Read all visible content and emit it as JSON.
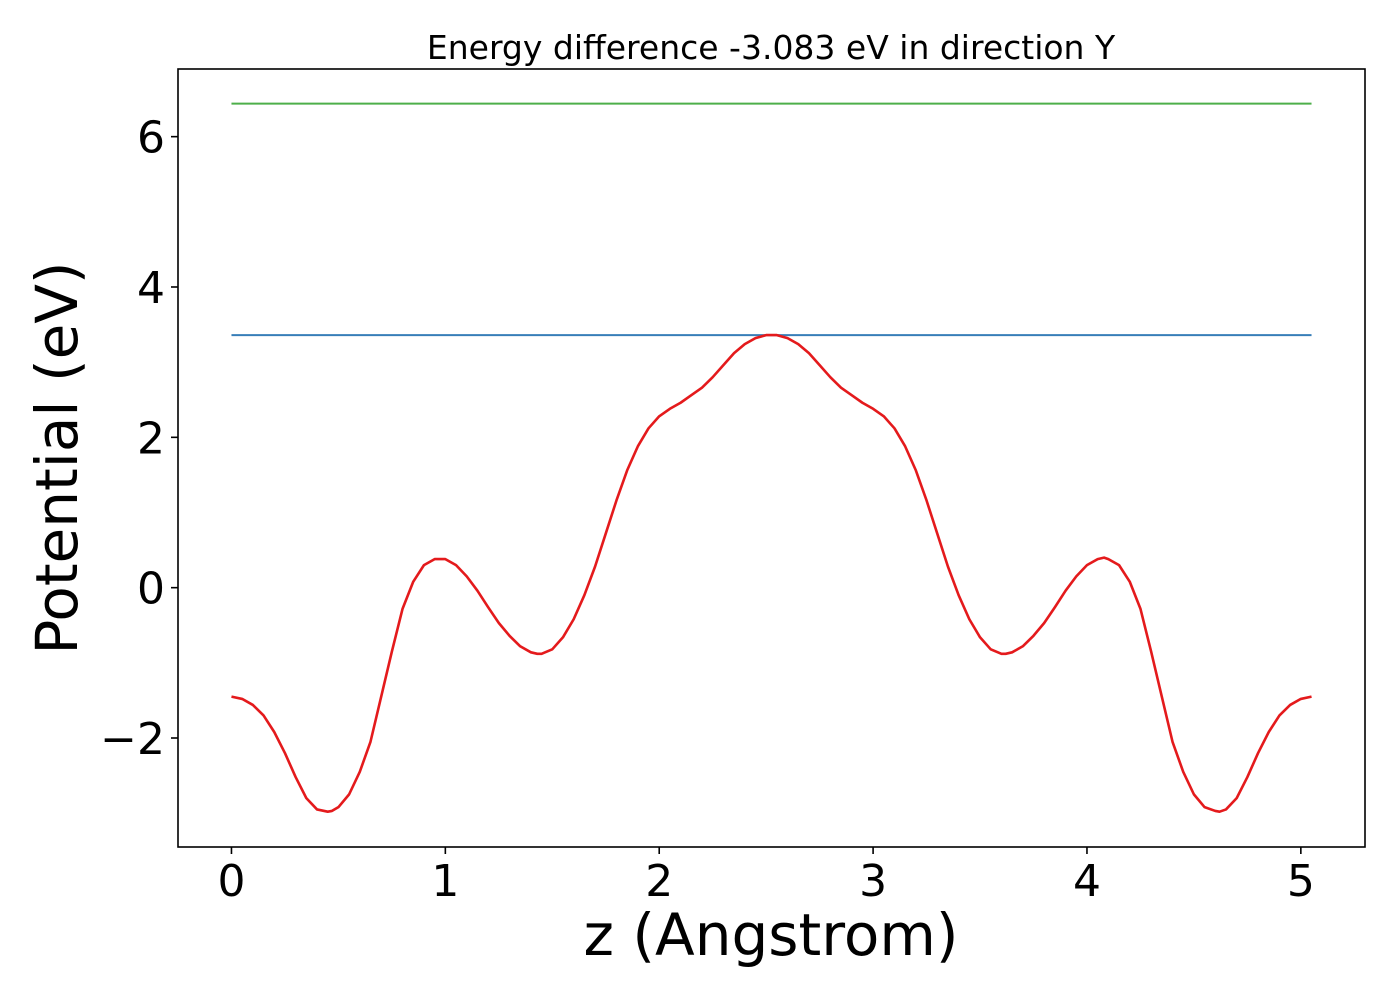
{
  "chart_data": {
    "type": "line",
    "title": "Energy difference -3.083 eV in direction Y",
    "xlabel": "z (Angstrom)",
    "ylabel": "Potential (eV)",
    "xlim": [
      -0.25,
      5.3
    ],
    "ylim": [
      -3.45,
      6.9
    ],
    "x_ticks": [
      0,
      1,
      2,
      3,
      4,
      5
    ],
    "x_tick_labels": [
      "0",
      "1",
      "2",
      "3",
      "4",
      "5"
    ],
    "y_ticks": [
      -2,
      0,
      2,
      4,
      6
    ],
    "y_tick_labels": [
      "−2",
      "0",
      "2",
      "4",
      "6"
    ],
    "grid": false,
    "legend": "none",
    "series": [
      {
        "color": "#4daf4a",
        "x": [
          0,
          5.05
        ],
        "y": [
          6.44,
          6.44
        ]
      },
      {
        "color": "#377eb8",
        "x": [
          0,
          5.05
        ],
        "y": [
          3.36,
          3.36
        ]
      },
      {
        "color": "#e41a1c",
        "x": [
          0,
          0.05,
          0.1,
          0.15,
          0.2,
          0.25,
          0.3,
          0.35,
          0.4,
          0.45,
          0.47,
          0.5,
          0.55,
          0.6,
          0.65,
          0.7,
          0.75,
          0.8,
          0.85,
          0.9,
          0.95,
          1.0,
          1.05,
          1.1,
          1.15,
          1.2,
          1.25,
          1.3,
          1.35,
          1.4,
          1.43,
          1.45,
          1.5,
          1.55,
          1.6,
          1.65,
          1.7,
          1.75,
          1.8,
          1.85,
          1.9,
          1.95,
          2.0,
          2.05,
          2.1,
          2.15,
          2.2,
          2.25,
          2.3,
          2.35,
          2.4,
          2.45,
          2.5,
          2.55,
          2.6,
          2.65,
          2.7,
          2.75,
          2.8,
          2.85,
          2.9,
          2.95,
          3.0,
          3.05,
          3.1,
          3.15,
          3.2,
          3.25,
          3.3,
          3.35,
          3.4,
          3.45,
          3.5,
          3.55,
          3.6,
          3.62,
          3.65,
          3.7,
          3.75,
          3.8,
          3.85,
          3.9,
          3.95,
          4.0,
          4.05,
          4.08,
          4.1,
          4.15,
          4.2,
          4.25,
          4.3,
          4.35,
          4.4,
          4.45,
          4.5,
          4.55,
          4.6,
          4.62,
          4.65,
          4.7,
          4.75,
          4.8,
          4.85,
          4.9,
          4.95,
          5.0,
          5.05
        ],
        "y": [
          -1.45,
          -1.48,
          -1.56,
          -1.7,
          -1.92,
          -2.2,
          -2.52,
          -2.8,
          -2.95,
          -2.98,
          -2.97,
          -2.92,
          -2.75,
          -2.45,
          -2.05,
          -1.45,
          -0.85,
          -0.28,
          0.08,
          0.3,
          0.38,
          0.38,
          0.3,
          0.15,
          -0.04,
          -0.26,
          -0.47,
          -0.64,
          -0.78,
          -0.86,
          -0.88,
          -0.88,
          -0.82,
          -0.66,
          -0.42,
          -0.1,
          0.28,
          0.72,
          1.16,
          1.56,
          1.88,
          2.12,
          2.28,
          2.38,
          2.46,
          2.56,
          2.66,
          2.8,
          2.96,
          3.12,
          3.24,
          3.32,
          3.36,
          3.36,
          3.32,
          3.24,
          3.12,
          2.96,
          2.8,
          2.66,
          2.56,
          2.46,
          2.38,
          2.28,
          2.12,
          1.88,
          1.56,
          1.16,
          0.72,
          0.28,
          -0.1,
          -0.42,
          -0.66,
          -0.82,
          -0.88,
          -0.88,
          -0.86,
          -0.78,
          -0.64,
          -0.47,
          -0.26,
          -0.04,
          0.15,
          0.3,
          0.38,
          0.4,
          0.38,
          0.3,
          0.08,
          -0.28,
          -0.85,
          -1.45,
          -2.05,
          -2.45,
          -2.75,
          -2.92,
          -2.97,
          -2.98,
          -2.95,
          -2.8,
          -2.52,
          -2.2,
          -1.92,
          -1.7,
          -1.56,
          -1.48,
          -1.45
        ]
      }
    ]
  }
}
